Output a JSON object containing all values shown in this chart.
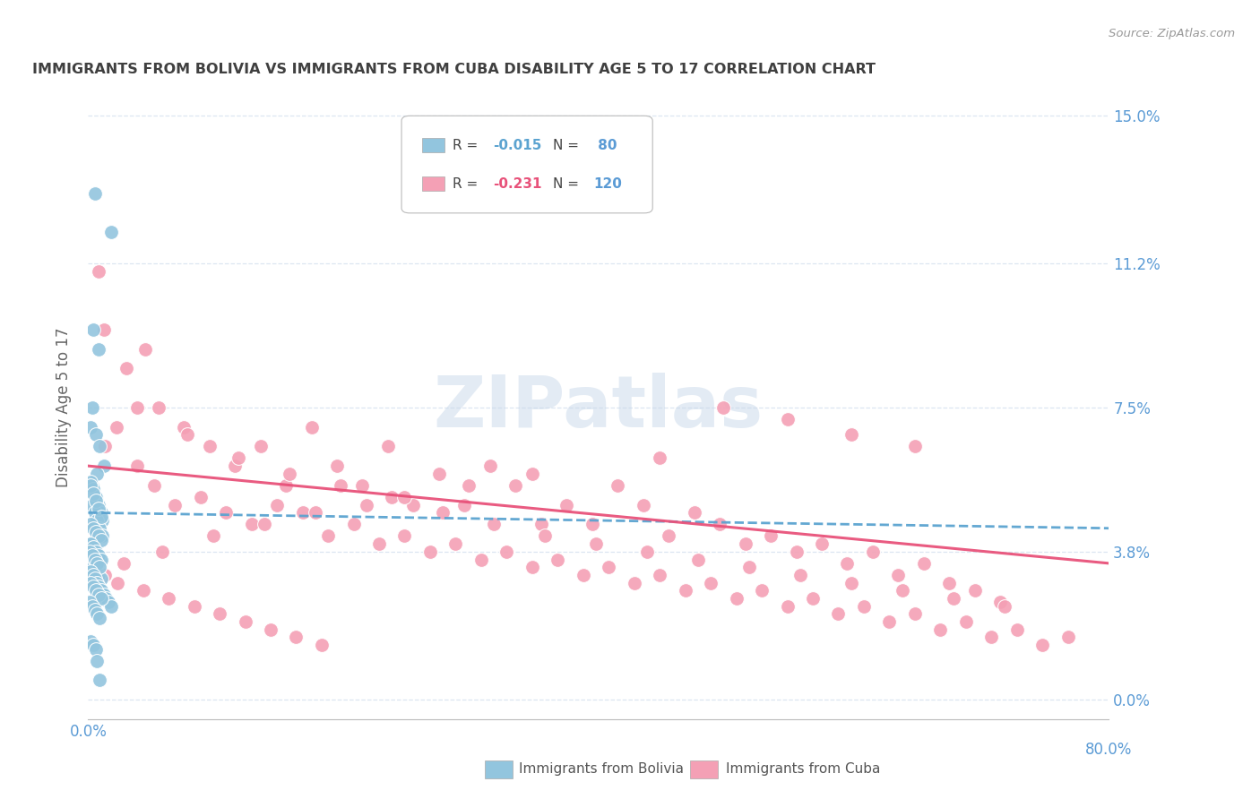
{
  "title": "IMMIGRANTS FROM BOLIVIA VS IMMIGRANTS FROM CUBA DISABILITY AGE 5 TO 17 CORRELATION CHART",
  "source_text": "Source: ZipAtlas.com",
  "ylabel": "Disability Age 5 to 17",
  "xlim": [
    0.0,
    0.8
  ],
  "ylim": [
    -0.005,
    0.155
  ],
  "ytick_labels": [
    "0.0%",
    "3.8%",
    "7.5%",
    "11.2%",
    "15.0%"
  ],
  "ytick_values": [
    0.0,
    0.038,
    0.075,
    0.112,
    0.15
  ],
  "xtick_values": [
    0.0,
    0.2,
    0.4,
    0.6,
    0.8
  ],
  "bolivia_color": "#92c5de",
  "cuba_color": "#f4a0b5",
  "bolivia_line_color": "#5ba3d0",
  "cuba_line_color": "#e8527a",
  "axis_label_color": "#5b9bd5",
  "background_color": "#ffffff",
  "grid_color": "#dce6f1",
  "title_color": "#404040",
  "watermark_color": "#c8d8ea",
  "bolivia_scatter_x": [
    0.005,
    0.018,
    0.004,
    0.008,
    0.003,
    0.002,
    0.006,
    0.009,
    0.012,
    0.007,
    0.003,
    0.005,
    0.008,
    0.01,
    0.002,
    0.004,
    0.006,
    0.007,
    0.009,
    0.011,
    0.003,
    0.005,
    0.007,
    0.009,
    0.011,
    0.002,
    0.004,
    0.006,
    0.008,
    0.01,
    0.002,
    0.004,
    0.006,
    0.008,
    0.01,
    0.001,
    0.003,
    0.005,
    0.007,
    0.009,
    0.002,
    0.004,
    0.006,
    0.008,
    0.01,
    0.002,
    0.004,
    0.006,
    0.008,
    0.01,
    0.001,
    0.003,
    0.005,
    0.007,
    0.009,
    0.002,
    0.004,
    0.005,
    0.007,
    0.008,
    0.01,
    0.012,
    0.014,
    0.016,
    0.018,
    0.002,
    0.004,
    0.006,
    0.008,
    0.01,
    0.001,
    0.003,
    0.005,
    0.007,
    0.009,
    0.002,
    0.004,
    0.006,
    0.007,
    0.009
  ],
  "bolivia_scatter_y": [
    0.13,
    0.12,
    0.095,
    0.09,
    0.075,
    0.07,
    0.068,
    0.065,
    0.06,
    0.058,
    0.055,
    0.052,
    0.05,
    0.048,
    0.056,
    0.054,
    0.052,
    0.05,
    0.048,
    0.046,
    0.05,
    0.048,
    0.046,
    0.044,
    0.042,
    0.055,
    0.053,
    0.051,
    0.049,
    0.047,
    0.045,
    0.044,
    0.043,
    0.042,
    0.041,
    0.04,
    0.039,
    0.038,
    0.037,
    0.036,
    0.04,
    0.039,
    0.038,
    0.037,
    0.036,
    0.035,
    0.034,
    0.033,
    0.032,
    0.031,
    0.038,
    0.037,
    0.036,
    0.035,
    0.034,
    0.033,
    0.032,
    0.031,
    0.03,
    0.029,
    0.028,
    0.027,
    0.026,
    0.025,
    0.024,
    0.03,
    0.029,
    0.028,
    0.027,
    0.026,
    0.025,
    0.024,
    0.023,
    0.022,
    0.021,
    0.015,
    0.014,
    0.013,
    0.01,
    0.005
  ],
  "cuba_scatter_x": [
    0.008,
    0.012,
    0.03,
    0.045,
    0.055,
    0.075,
    0.095,
    0.115,
    0.135,
    0.155,
    0.175,
    0.195,
    0.215,
    0.235,
    0.255,
    0.275,
    0.295,
    0.315,
    0.335,
    0.355,
    0.375,
    0.395,
    0.415,
    0.435,
    0.455,
    0.475,
    0.495,
    0.515,
    0.535,
    0.555,
    0.575,
    0.595,
    0.615,
    0.635,
    0.655,
    0.675,
    0.695,
    0.715,
    0.013,
    0.022,
    0.038,
    0.052,
    0.068,
    0.088,
    0.108,
    0.128,
    0.148,
    0.168,
    0.188,
    0.208,
    0.228,
    0.248,
    0.268,
    0.288,
    0.308,
    0.328,
    0.348,
    0.368,
    0.388,
    0.408,
    0.428,
    0.448,
    0.468,
    0.488,
    0.508,
    0.528,
    0.548,
    0.568,
    0.588,
    0.608,
    0.628,
    0.648,
    0.668,
    0.688,
    0.708,
    0.728,
    0.748,
    0.768,
    0.038,
    0.078,
    0.118,
    0.158,
    0.198,
    0.238,
    0.278,
    0.318,
    0.358,
    0.398,
    0.438,
    0.478,
    0.518,
    0.558,
    0.598,
    0.638,
    0.678,
    0.718,
    0.498,
    0.548,
    0.598,
    0.648,
    0.448,
    0.348,
    0.298,
    0.248,
    0.218,
    0.178,
    0.138,
    0.098,
    0.058,
    0.028,
    0.013,
    0.023,
    0.043,
    0.063,
    0.083,
    0.103,
    0.123,
    0.143,
    0.163,
    0.183
  ],
  "cuba_scatter_y": [
    0.11,
    0.095,
    0.085,
    0.09,
    0.075,
    0.07,
    0.065,
    0.06,
    0.065,
    0.055,
    0.07,
    0.06,
    0.055,
    0.065,
    0.05,
    0.058,
    0.05,
    0.06,
    0.055,
    0.045,
    0.05,
    0.045,
    0.055,
    0.05,
    0.042,
    0.048,
    0.045,
    0.04,
    0.042,
    0.038,
    0.04,
    0.035,
    0.038,
    0.032,
    0.035,
    0.03,
    0.028,
    0.025,
    0.065,
    0.07,
    0.06,
    0.055,
    0.05,
    0.052,
    0.048,
    0.045,
    0.05,
    0.048,
    0.042,
    0.045,
    0.04,
    0.042,
    0.038,
    0.04,
    0.036,
    0.038,
    0.034,
    0.036,
    0.032,
    0.034,
    0.03,
    0.032,
    0.028,
    0.03,
    0.026,
    0.028,
    0.024,
    0.026,
    0.022,
    0.024,
    0.02,
    0.022,
    0.018,
    0.02,
    0.016,
    0.018,
    0.014,
    0.016,
    0.075,
    0.068,
    0.062,
    0.058,
    0.055,
    0.052,
    0.048,
    0.045,
    0.042,
    0.04,
    0.038,
    0.036,
    0.034,
    0.032,
    0.03,
    0.028,
    0.026,
    0.024,
    0.075,
    0.072,
    0.068,
    0.065,
    0.062,
    0.058,
    0.055,
    0.052,
    0.05,
    0.048,
    0.045,
    0.042,
    0.038,
    0.035,
    0.032,
    0.03,
    0.028,
    0.026,
    0.024,
    0.022,
    0.02,
    0.018,
    0.016,
    0.014
  ]
}
